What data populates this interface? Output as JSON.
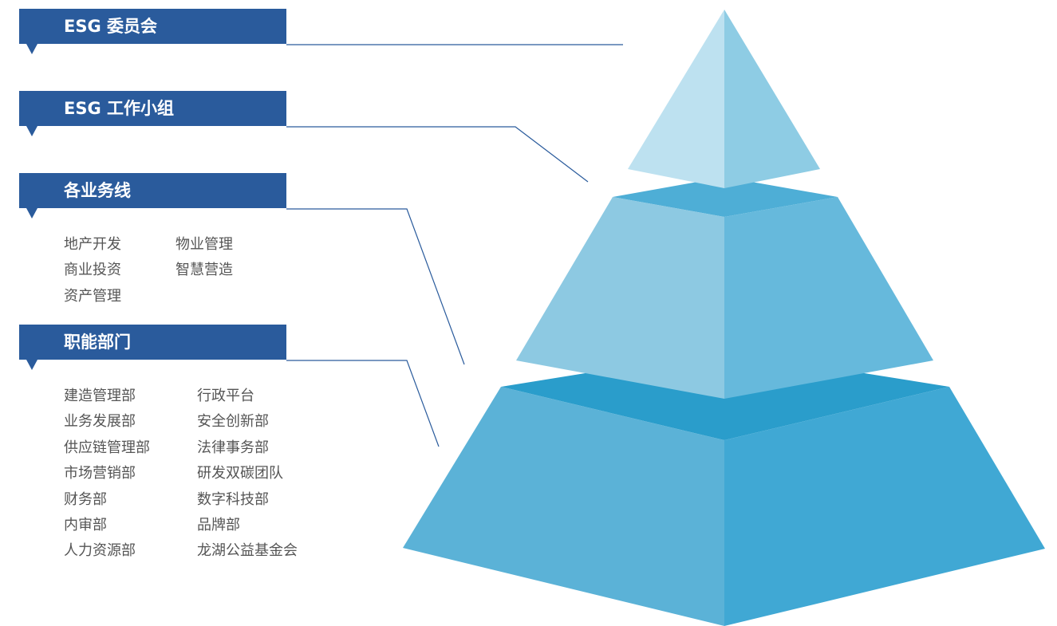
{
  "levels": [
    {
      "label": "ESG 委员会",
      "items": []
    },
    {
      "label": "ESG 工作小组",
      "items": []
    },
    {
      "label": "各业务线",
      "items": [
        "地产开发",
        "商业投资",
        "资产管理",
        "物业管理",
        "智慧营造"
      ]
    },
    {
      "label": "职能部门",
      "items": [
        "建造管理部",
        "业务发展部",
        "供应链管理部",
        "市场营销部",
        "财务部",
        "内审部",
        "人力资源部",
        "行政平台",
        "安全创新部",
        "法律事务部",
        "研发双碳团队",
        "数字科技部",
        "品牌部",
        "龙湖公益基金会"
      ]
    }
  ],
  "colors": {
    "banner": "#2a5b9c",
    "pyramid_apex_left": "#bde1f0",
    "pyramid_apex_right": "#8ecce4",
    "pyramid_middle_left": "#8dc9e2",
    "pyramid_middle_right": "#66b9dc",
    "pyramid_base_left": "#5bb2d7",
    "pyramid_base_right": "#40a8d4",
    "pyramid_ledge": "#2a9dcb",
    "text_items": "#555555"
  }
}
